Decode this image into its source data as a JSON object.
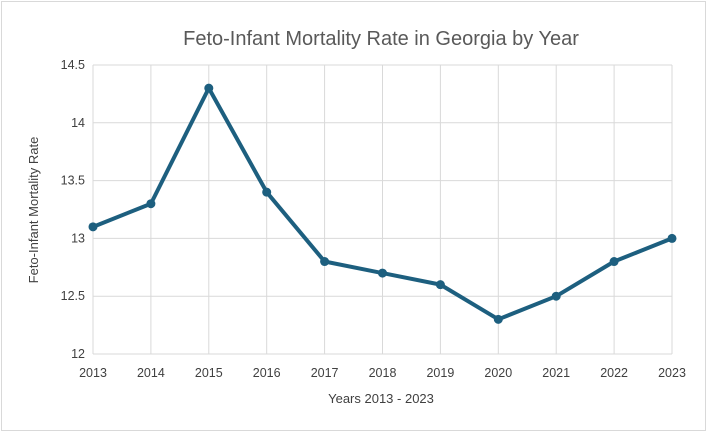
{
  "chart_data": {
    "type": "line",
    "title": "Feto-Infant Mortality Rate in Georgia by Year",
    "xlabel": "Years  2013 - 2023",
    "ylabel": "Feto-Infant Mortality Rate",
    "categories": [
      "2013",
      "2014",
      "2015",
      "2016",
      "2017",
      "2018",
      "2019",
      "2020",
      "2021",
      "2022",
      "2023"
    ],
    "series": [
      {
        "name": "Feto-Infant Mortality Rate",
        "values": [
          13.1,
          13.3,
          14.3,
          13.4,
          12.8,
          12.7,
          12.6,
          12.3,
          12.5,
          12.8,
          13.0
        ]
      }
    ],
    "ylim": [
      12,
      14.5
    ],
    "yticks": [
      "12",
      "12.5",
      "13",
      "13.5",
      "14",
      "14.5"
    ],
    "grid": true,
    "legend": "none",
    "colors": {
      "series": "#1d5f7f",
      "grid": "#d9d9d9",
      "text": "#404040",
      "title": "#595959"
    }
  }
}
